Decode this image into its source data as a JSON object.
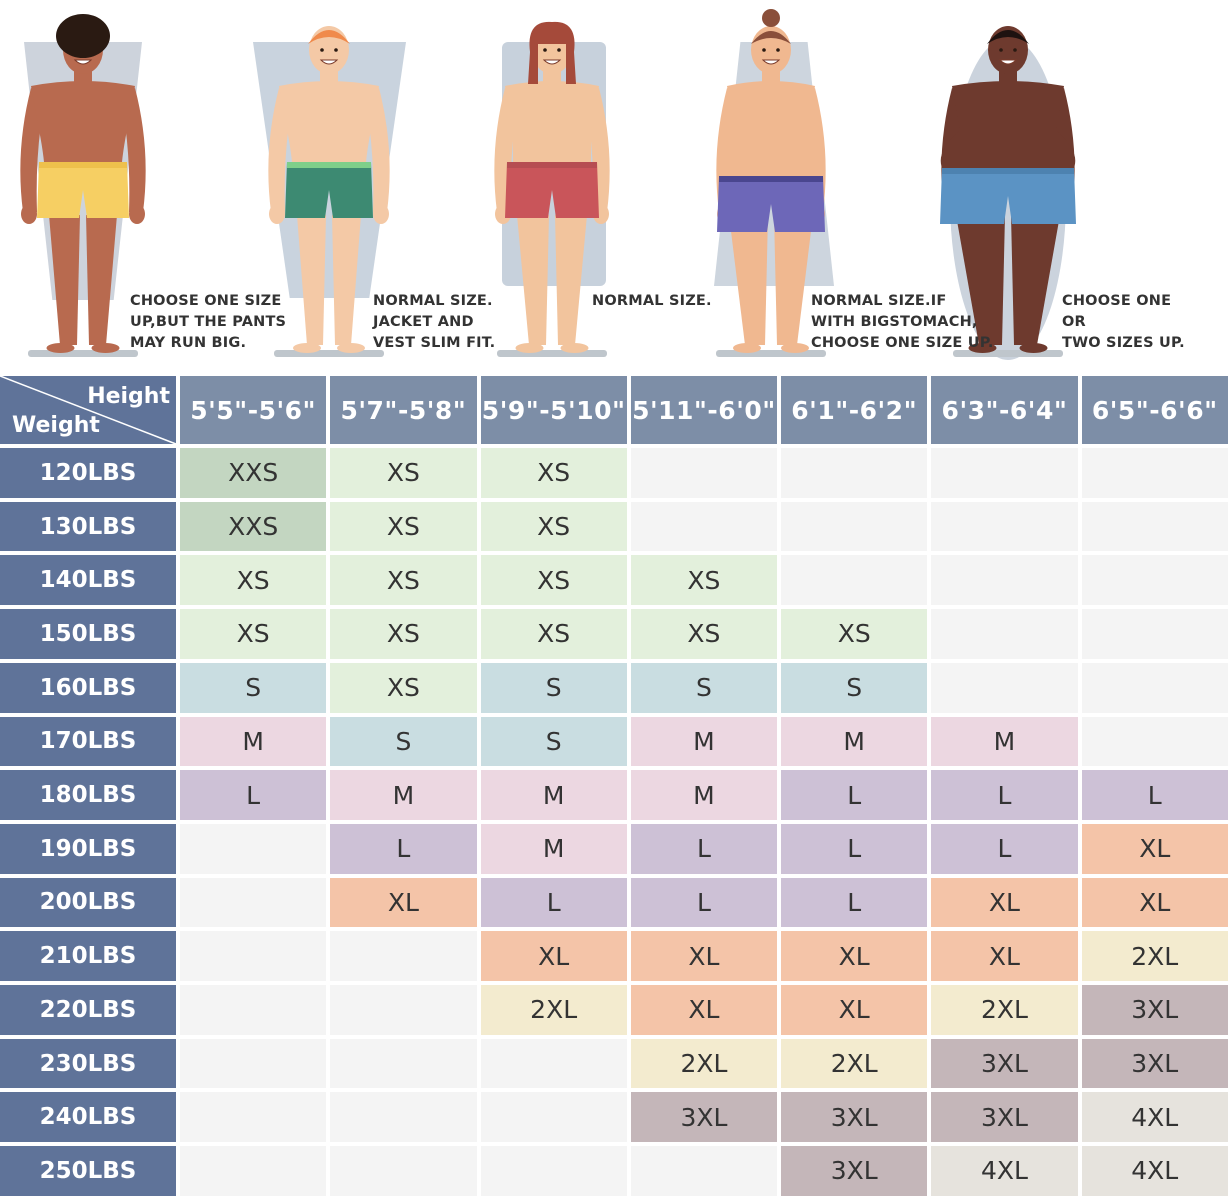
{
  "chart_data": {
    "type": "table",
    "corner": {
      "top_label": "Height",
      "bottom_label": "Weight"
    },
    "columns": [
      "5'5\"-5'6\"",
      "5'7\"-5'8\"",
      "5'9\"-5'10\"",
      "5'11\"-6'0\"",
      "6'1\"-6'2\"",
      "6'3\"-6'4\"",
      "6'5\"-6'6\""
    ],
    "rows": [
      "120LBS",
      "130LBS",
      "140LBS",
      "150LBS",
      "160LBS",
      "170LBS",
      "180LBS",
      "190LBS",
      "200LBS",
      "210LBS",
      "220LBS",
      "230LBS",
      "240LBS",
      "250LBS"
    ],
    "cells": [
      [
        "XXS",
        "XS",
        "XS",
        "",
        "",
        "",
        ""
      ],
      [
        "XXS",
        "XS",
        "XS",
        "",
        "",
        "",
        ""
      ],
      [
        "XS",
        "XS",
        "XS",
        "XS",
        "",
        "",
        ""
      ],
      [
        "XS",
        "XS",
        "XS",
        "XS",
        "XS",
        "",
        ""
      ],
      [
        "S",
        "XS",
        "S",
        "S",
        "S",
        "",
        ""
      ],
      [
        "M",
        "S",
        "S",
        "M",
        "M",
        "M",
        ""
      ],
      [
        "L",
        "M",
        "M",
        "M",
        "L",
        "L",
        "L"
      ],
      [
        "",
        "L",
        "M",
        "L",
        "L",
        "L",
        "XL"
      ],
      [
        "",
        "XL",
        "L",
        "L",
        "L",
        "XL",
        "XL"
      ],
      [
        "",
        "",
        "XL",
        "XL",
        "XL",
        "XL",
        "2XL"
      ],
      [
        "",
        "",
        "2XL",
        "XL",
        "XL",
        "2XL",
        "3XL"
      ],
      [
        "",
        "",
        "",
        "2XL",
        "2XL",
        "3XL",
        "3XL"
      ],
      [
        "",
        "",
        "",
        "3XL",
        "3XL",
        "3XL",
        "4XL"
      ],
      [
        "",
        "",
        "",
        "",
        "3XL",
        "4XL",
        "4XL"
      ]
    ],
    "size_colors": {
      "XXS": "#c3d6c1",
      "XS": "#e3f0dc",
      "S": "#c9dde1",
      "M": "#ecd7e1",
      "L": "#cdc1d6",
      "XL": "#f4c4a8",
      "2XL": "#f3ebcf",
      "3XL": "#c4b6b9",
      "4XL": "#e6e3dd",
      "empty": "#f4f4f4"
    },
    "header_colors": {
      "corner": "#5f7399",
      "column": "#7d8ea7",
      "row": "#5f7399"
    }
  },
  "figures": [
    {
      "name": "figure-muscular",
      "skin": "#b86a4f",
      "hair": "#2a1a12",
      "hair_style": "afro",
      "shorts": "#f6cf63",
      "waistband": "#eec04c",
      "silhouette": "#cdd3dc",
      "silhouette_shape": "inverted-trapezoid",
      "tip": "CHOOSE ONE SIZE\nUP,BUT THE PANTS\nMAY RUN BIG."
    },
    {
      "name": "figure-slim",
      "skin": "#f4c9a6",
      "hair": "#f08a4b",
      "hair_style": "short",
      "shorts": "#3d8a72",
      "waistband": "#7ecf8a",
      "silhouette": "#c9d3de",
      "silhouette_shape": "inverted-trapezoid",
      "tip": "NORMAL SIZE.\nJACKET AND\nVEST SLIM FIT."
    },
    {
      "name": "figure-average",
      "skin": "#f2c49d",
      "hair": "#a54a3a",
      "hair_style": "long",
      "shorts": "#c9555a",
      "waistband": "#b64d52",
      "silhouette": "#c7d1dc",
      "silhouette_shape": "rectangle",
      "tip": "NORMAL SIZE."
    },
    {
      "name": "figure-stomach",
      "skin": "#f0b890",
      "hair": "#8a4f3a",
      "hair_style": "bun",
      "shorts": "#6d67b8",
      "waistband": "#4a468f",
      "silhouette": "#cdd5de",
      "silhouette_shape": "trapezoid",
      "tip": "NORMAL SIZE.IF\nWITH BIGSTOMACH,\nCHOOSE ONE SIZE UP."
    },
    {
      "name": "figure-large",
      "skin": "#6e3a2e",
      "hair": "#1e1210",
      "hair_style": "short",
      "shorts": "#5b93c4",
      "waistband": "#4d82b0",
      "silhouette": "#cbd3dd",
      "silhouette_shape": "oval",
      "tip": "CHOOSE ONE OR\nTWO SIZES UP."
    }
  ]
}
